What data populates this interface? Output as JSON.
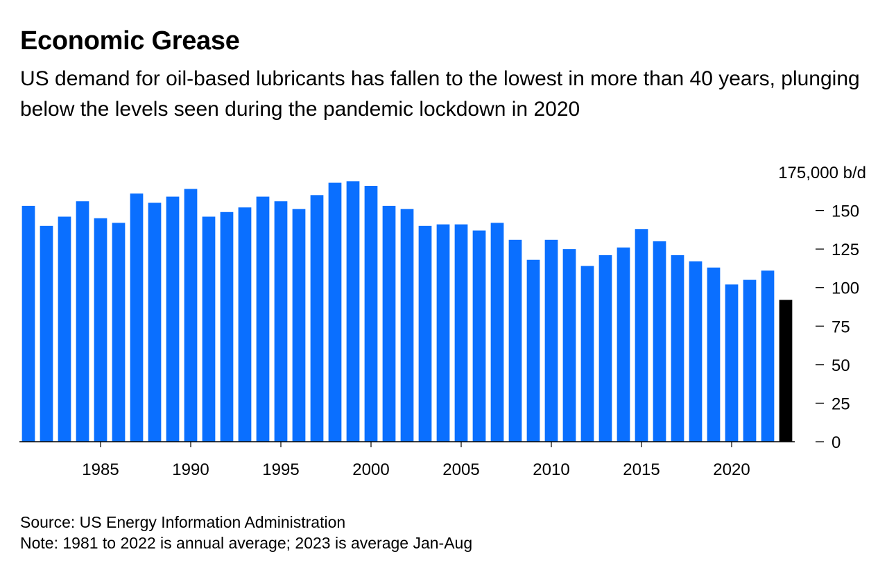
{
  "title": "Economic Grease",
  "subtitle": "US demand for oil-based lubricants has fallen to the lowest in more than 40 years, plunging below the levels seen during the pandemic lockdown in 2020",
  "source": "Source: US Energy Information Administration",
  "note": "Note: 1981 to 2022 is annual average; 2023 is average Jan-Aug",
  "chart_data": {
    "type": "bar",
    "title": "Economic Grease",
    "xlabel": "",
    "ylabel": "175,000 b/d",
    "ylim": [
      0,
      175
    ],
    "y_ticks": [
      {
        "value": 0,
        "label": "0"
      },
      {
        "value": 25,
        "label": "25"
      },
      {
        "value": 50,
        "label": "50"
      },
      {
        "value": 75,
        "label": "75"
      },
      {
        "value": 100,
        "label": "100"
      },
      {
        "value": 125,
        "label": "125"
      },
      {
        "value": 150,
        "label": "150"
      },
      {
        "value": 175,
        "label": "175,000 b/d"
      }
    ],
    "x_ticks": [
      {
        "year": 1985,
        "label": "1985"
      },
      {
        "year": 1990,
        "label": "1990"
      },
      {
        "year": 1995,
        "label": "1995"
      },
      {
        "year": 2000,
        "label": "2000"
      },
      {
        "year": 2005,
        "label": "2005"
      },
      {
        "year": 2010,
        "label": "2010"
      },
      {
        "year": 2015,
        "label": "2015"
      },
      {
        "year": 2020,
        "label": "2020"
      }
    ],
    "categories": [
      1981,
      1982,
      1983,
      1984,
      1985,
      1986,
      1987,
      1988,
      1989,
      1990,
      1991,
      1992,
      1993,
      1994,
      1995,
      1996,
      1997,
      1998,
      1999,
      2000,
      2001,
      2002,
      2003,
      2004,
      2005,
      2006,
      2007,
      2008,
      2009,
      2010,
      2011,
      2012,
      2013,
      2014,
      2015,
      2016,
      2017,
      2018,
      2019,
      2020,
      2021,
      2022,
      2023
    ],
    "values": [
      153,
      140,
      146,
      156,
      145,
      142,
      161,
      155,
      159,
      164,
      146,
      149,
      152,
      159,
      156,
      151,
      160,
      168,
      169,
      166,
      153,
      151,
      140,
      141,
      141,
      137,
      142,
      131,
      118,
      131,
      125,
      114,
      121,
      126,
      138,
      130,
      121,
      117,
      113,
      102,
      105,
      111,
      92
    ],
    "colors": {
      "annual": "#0a6fff",
      "partial": "#000000"
    },
    "highlight_last": true
  }
}
